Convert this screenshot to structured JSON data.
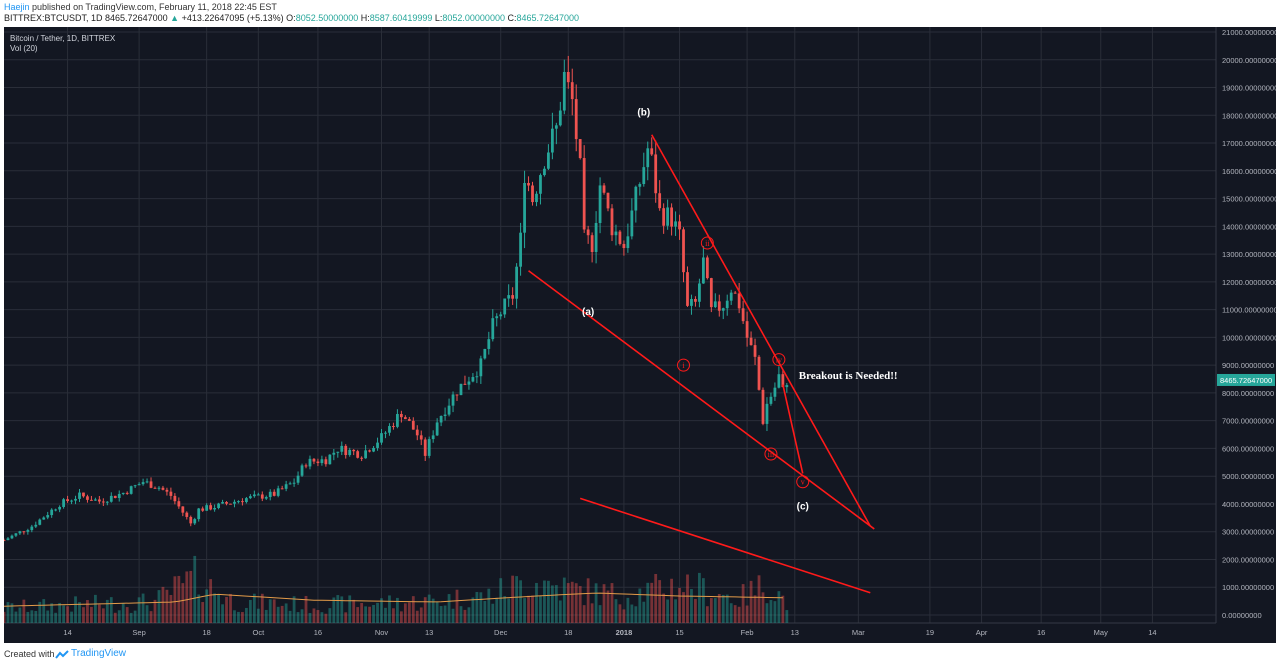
{
  "header": {
    "author": "Haejin",
    "published_text": "published on TradingView.com, February 11, 2018 22:45 EST",
    "symbol": "BITTREX:BTCUSDT, 1D",
    "last": "8465.72647000",
    "change": "+413.22647095 (+5.13%)",
    "o_label": "O:",
    "o_value": "8052.50000000",
    "h_label": "H:",
    "h_value": "8587.60419999",
    "l_label": "L:",
    "l_value": "8052.00000000",
    "c_label": "C:",
    "c_value": "8465.72647000"
  },
  "legend": {
    "title": "Bitcoin / Tether, 1D, BITTREX",
    "volume": "Vol (20)"
  },
  "footer": {
    "created_with": "Created with",
    "brand": "TradingView"
  },
  "colors": {
    "background": "#131722",
    "grid": "#2a2e39",
    "up": "#26a69a",
    "down": "#ef5350",
    "annotation": "#ff1a1a",
    "vol_ma": "#e39b49",
    "price_tag": "#26a69a"
  },
  "chart_data": {
    "type": "candlestick",
    "ylim": [
      -500,
      21000
    ],
    "y_ticks": [
      "21000.00000000",
      "20000.00000000",
      "19000.00000000",
      "18000.00000000",
      "17000.00000000",
      "16000.00000000",
      "15000.00000000",
      "14000.00000000",
      "13000.00000000",
      "12000.00000000",
      "11000.00000000",
      "10000.00000000",
      "9000.00000000",
      "8000.00000000",
      "7000.00000000",
      "6000.00000000",
      "5000.00000000",
      "4000.00000000",
      "3000.00000000",
      "2000.00000000",
      "1000.00000000",
      "0.00000000"
    ],
    "x_start": "2017-07-29",
    "x_end": "2018-05-30",
    "x_ticks": [
      {
        "date": "2017-08-14",
        "label": "14"
      },
      {
        "date": "2017-09-01",
        "label": "Sep"
      },
      {
        "date": "2017-09-18",
        "label": "18"
      },
      {
        "date": "2017-10-01",
        "label": "Oct"
      },
      {
        "date": "2017-10-16",
        "label": "16"
      },
      {
        "date": "2017-11-01",
        "label": "Nov"
      },
      {
        "date": "2017-11-13",
        "label": "13"
      },
      {
        "date": "2017-12-01",
        "label": "Dec"
      },
      {
        "date": "2017-12-18",
        "label": "18"
      },
      {
        "date": "2018-01-01",
        "label": "2018"
      },
      {
        "date": "2018-01-15",
        "label": "15"
      },
      {
        "date": "2018-02-01",
        "label": "Feb"
      },
      {
        "date": "2018-02-13",
        "label": "13"
      },
      {
        "date": "2018-03-01",
        "label": "Mar"
      },
      {
        "date": "2018-03-19",
        "label": "19"
      },
      {
        "date": "2018-04-01",
        "label": "Apr"
      },
      {
        "date": "2018-04-16",
        "label": "16"
      },
      {
        "date": "2018-05-01",
        "label": "May"
      },
      {
        "date": "2018-05-14",
        "label": "14"
      }
    ],
    "last_price_label": "8465.72647000",
    "last_price": 8465.73,
    "price_path": [
      [
        "2017-07-29",
        2700
      ],
      [
        "2017-08-05",
        3200
      ],
      [
        "2017-08-12",
        4000
      ],
      [
        "2017-08-17",
        4300
      ],
      [
        "2017-08-22",
        4100
      ],
      [
        "2017-08-28",
        4400
      ],
      [
        "2017-09-02",
        4800
      ],
      [
        "2017-09-06",
        4600
      ],
      [
        "2017-09-09",
        4300
      ],
      [
        "2017-09-14",
        3300
      ],
      [
        "2017-09-16",
        3800
      ],
      [
        "2017-09-20",
        3900
      ],
      [
        "2017-09-28",
        4200
      ],
      [
        "2017-10-05",
        4350
      ],
      [
        "2017-10-10",
        4800
      ],
      [
        "2017-10-13",
        5500
      ],
      [
        "2017-10-18",
        5600
      ],
      [
        "2017-10-21",
        6000
      ],
      [
        "2017-10-27",
        5800
      ],
      [
        "2017-11-01",
        6400
      ],
      [
        "2017-11-06",
        7300
      ],
      [
        "2017-11-10",
        6500
      ],
      [
        "2017-11-12",
        5800
      ],
      [
        "2017-11-15",
        7000
      ],
      [
        "2017-11-20",
        8100
      ],
      [
        "2017-11-26",
        9000
      ],
      [
        "2017-11-29",
        10400
      ],
      [
        "2017-12-01",
        10900
      ],
      [
        "2017-12-04",
        11500
      ],
      [
        "2017-12-06",
        13500
      ],
      [
        "2017-12-07",
        16000
      ],
      [
        "2017-12-09",
        15000
      ],
      [
        "2017-12-12",
        16500
      ],
      [
        "2017-12-15",
        17500
      ],
      [
        "2017-12-17",
        19400
      ],
      [
        "2017-12-19",
        18500
      ],
      [
        "2017-12-21",
        16000
      ],
      [
        "2017-12-22",
        13500
      ],
      [
        "2017-12-24",
        13400
      ],
      [
        "2017-12-26",
        15500
      ],
      [
        "2017-12-29",
        14000
      ],
      [
        "2018-01-01",
        13300
      ],
      [
        "2018-01-04",
        15000
      ],
      [
        "2018-01-07",
        16800
      ],
      [
        "2018-01-08",
        16300
      ],
      [
        "2018-01-10",
        14500
      ],
      [
        "2018-01-13",
        14300
      ],
      [
        "2018-01-15",
        13600
      ],
      [
        "2018-01-17",
        11000
      ],
      [
        "2018-01-19",
        11200
      ],
      [
        "2018-01-21",
        12700
      ],
      [
        "2018-01-23",
        10900
      ],
      [
        "2018-01-26",
        11200
      ],
      [
        "2018-01-28",
        11800
      ],
      [
        "2018-01-30",
        11200
      ],
      [
        "2018-02-01",
        10000
      ],
      [
        "2018-02-03",
        9200
      ],
      [
        "2018-02-05",
        7000
      ],
      [
        "2018-02-06",
        7600
      ],
      [
        "2018-02-08",
        8200
      ],
      [
        "2018-02-09",
        8600
      ],
      [
        "2018-02-10",
        8050
      ],
      [
        "2018-02-11",
        8466
      ]
    ],
    "volume_note": "volume bars shown in lower pane (relative heights)",
    "volume_path": [
      [
        "2017-07-29",
        0.25
      ],
      [
        "2017-08-15",
        0.3
      ],
      [
        "2017-09-05",
        0.35
      ],
      [
        "2017-09-15",
        0.75
      ],
      [
        "2017-09-25",
        0.35
      ],
      [
        "2017-10-15",
        0.3
      ],
      [
        "2017-11-10",
        0.35
      ],
      [
        "2017-11-28",
        0.45
      ],
      [
        "2017-12-08",
        0.7
      ],
      [
        "2017-12-20",
        0.55
      ],
      [
        "2018-01-01",
        0.45
      ],
      [
        "2018-01-16",
        0.65
      ],
      [
        "2018-01-30",
        0.4
      ],
      [
        "2018-02-06",
        0.65
      ],
      [
        "2018-02-11",
        0.35
      ]
    ],
    "volume_ma_path": [
      [
        "2017-07-29",
        0.28
      ],
      [
        "2017-09-10",
        0.35
      ],
      [
        "2017-09-20",
        0.48
      ],
      [
        "2017-10-15",
        0.38
      ],
      [
        "2017-11-15",
        0.35
      ],
      [
        "2017-12-10",
        0.45
      ],
      [
        "2017-12-25",
        0.5
      ],
      [
        "2018-01-15",
        0.45
      ],
      [
        "2018-02-11",
        0.42
      ]
    ],
    "annotations": {
      "lines": [
        {
          "from": [
            "2017-12-08",
            12400
          ],
          "to": [
            "2018-03-05",
            3100
          ]
        },
        {
          "from": [
            "2018-01-08",
            17300
          ],
          "to": [
            "2018-03-04",
            3200
          ]
        },
        {
          "from": [
            "2018-02-10",
            8300
          ],
          "to": [
            "2018-02-15",
            5100
          ]
        },
        {
          "from": [
            "2017-12-21",
            4200
          ],
          "to": [
            "2018-03-04",
            800
          ]
        }
      ],
      "circled_labels": [
        {
          "text": "ii",
          "date": "2018-01-22",
          "value": 13400
        },
        {
          "text": "i",
          "date": "2018-01-16",
          "value": 9000
        },
        {
          "text": "iii",
          "date": "2018-02-07",
          "value": 5800
        },
        {
          "text": "iv",
          "date": "2018-02-09",
          "value": 9200
        },
        {
          "text": "v",
          "date": "2018-02-15",
          "value": 4800
        }
      ],
      "white_labels": [
        {
          "text": "(b)",
          "date": "2018-01-06",
          "value": 18000
        },
        {
          "text": "(a)",
          "date": "2017-12-23",
          "value": 10800
        },
        {
          "text": "(c)",
          "date": "2018-02-15",
          "value": 3800
        }
      ],
      "note": {
        "text": "Breakout is Needed!!",
        "date": "2018-02-14",
        "value": 8500
      }
    }
  }
}
